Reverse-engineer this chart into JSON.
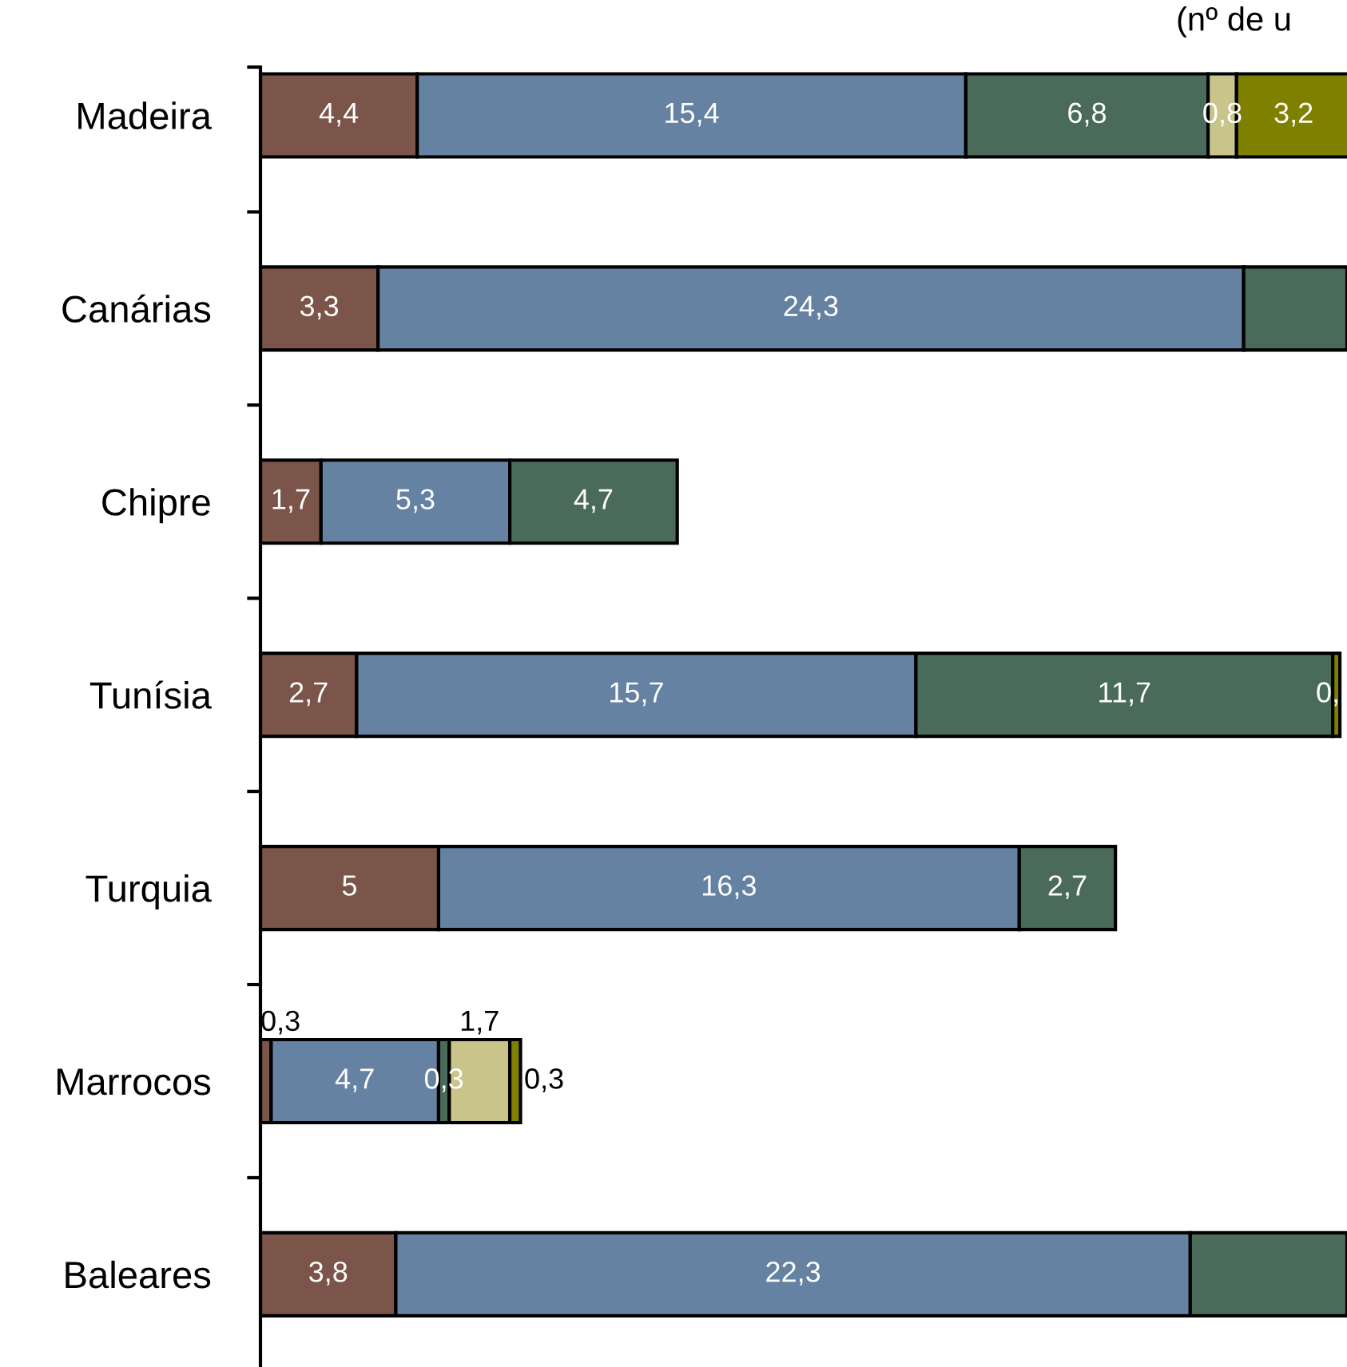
{
  "chart_data": {
    "type": "bar",
    "orientation": "horizontal",
    "stacked": true,
    "tick_labels": "y",
    "grid": false,
    "annotations": [
      "(nº de u"
    ],
    "categories": [
      "Madeira",
      "Canárias",
      "Chipre",
      "Tunísia",
      "Turquia",
      "Marrocos",
      "Baleares"
    ],
    "xlim": [
      0,
      30.5
    ],
    "series": [
      {
        "color": "#7b5549",
        "values": [
          4.4,
          3.3,
          1.7,
          2.7,
          5,
          0.3,
          3.8
        ],
        "value_labels": [
          "4,4",
          "3,3",
          "1,7",
          "2,7",
          "5",
          "0,3",
          "3,8"
        ]
      },
      {
        "color": "#6682a3",
        "values": [
          15.4,
          24.3,
          5.3,
          15.7,
          16.3,
          4.7,
          22.3
        ],
        "value_labels": [
          "15,4",
          "24,3",
          "5,3",
          "15,7",
          "16,3",
          "4,7",
          "22,3"
        ]
      },
      {
        "color": "#4a6b5a",
        "values": [
          6.8,
          2.9,
          4.7,
          11.7,
          2.7,
          0.3,
          4.4
        ],
        "value_labels": [
          "6,8",
          null,
          "4,7",
          "11,7",
          "2,7",
          "0,3",
          null
        ]
      },
      {
        "color": "#c8c48a",
        "values": [
          0.8,
          null,
          null,
          null,
          null,
          1.7,
          null
        ],
        "value_labels": [
          "0,8",
          null,
          null,
          null,
          null,
          "1,7",
          null
        ]
      },
      {
        "color": "#808000",
        "values": [
          3.2,
          null,
          null,
          0.2,
          null,
          0.3,
          null
        ],
        "value_labels": [
          "3,2",
          null,
          null,
          "0,",
          null,
          "0,3",
          null
        ]
      }
    ]
  }
}
